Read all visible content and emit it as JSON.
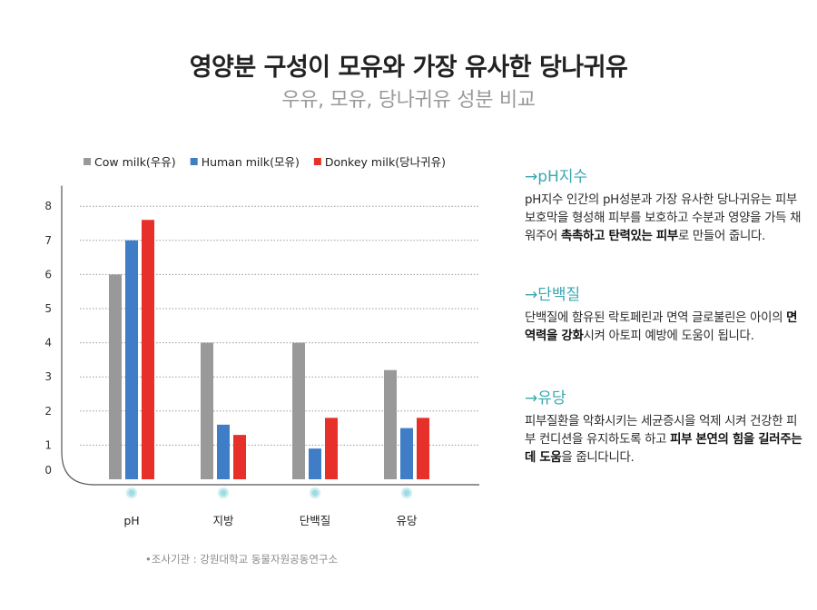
{
  "header": {
    "title": "영양분 구성이 모유와 가장 유사한 당나귀유",
    "subtitle": "우유, 모유, 당나귀유 성분 비교"
  },
  "chart_data": {
    "type": "bar",
    "title": "",
    "xlabel": "",
    "ylabel": "",
    "categories": [
      "pH",
      "지방",
      "단백질",
      "유당"
    ],
    "series": [
      {
        "name": "Cow milk(우유)",
        "color": "#999999",
        "values": [
          6.0,
          4.0,
          4.0,
          3.2
        ]
      },
      {
        "name": "Human milk(모유)",
        "color": "#3f7ec6",
        "values": [
          7.0,
          1.6,
          0.9,
          1.5
        ]
      },
      {
        "name": "Donkey milk(당나귀유)",
        "color": "#e8302a",
        "values": [
          7.6,
          1.3,
          1.8,
          1.8
        ]
      }
    ],
    "yticks": [
      "0",
      "1",
      "2",
      "3",
      "4",
      "5",
      "6",
      "7",
      "8"
    ],
    "ylim": [
      0,
      8.6
    ],
    "grid": true,
    "legend": "top"
  },
  "source_note": "•조사기관 : 강원대학교 동물자원공동연구소",
  "info": [
    {
      "heading": "→pH지수",
      "segments": [
        {
          "text": "pH지수 인간의 pH성분과 가장 유사한 당나귀유는 피부보호막을 형성해 피부를 보호하고 수분과 영양을 가득 채워주어 ",
          "bold": false
        },
        {
          "text": "촉촉하고 탄력있는 피부",
          "bold": true
        },
        {
          "text": "로 만들어 줍니다.",
          "bold": false
        }
      ]
    },
    {
      "heading": "→단백질",
      "segments": [
        {
          "text": "단백질에 함유된 락토페린과 면역 글로불린은 아이의 ",
          "bold": false
        },
        {
          "text": "면역력을 강화",
          "bold": true
        },
        {
          "text": "시켜 아토피 예방에 도움이 됩니다.",
          "bold": false
        }
      ]
    },
    {
      "heading": "→유당",
      "segments": [
        {
          "text": "피부질환을 악화시키는 세균증시을 억제 시켜 건강한 피부 컨디션을 유지하도록 하고 ",
          "bold": false
        },
        {
          "text": "피부 본연의 힘을 길러주는데 도움",
          "bold": true
        },
        {
          "text": "을 줍니다니다.",
          "bold": false
        }
      ]
    }
  ]
}
